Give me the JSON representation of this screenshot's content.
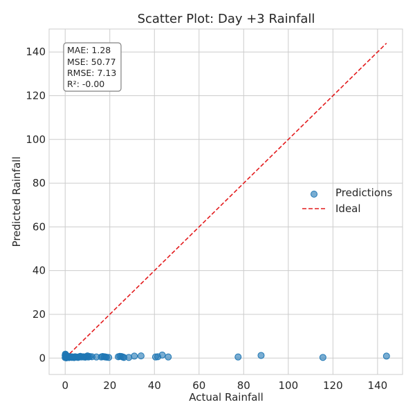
{
  "chart_data": {
    "type": "scatter",
    "title": "Scatter Plot: Day +3 Rainfall",
    "xlabel": "Actual Rainfall",
    "ylabel": "Predicted Rainfall",
    "xlim": [
      -7.2,
      151.2
    ],
    "ylim": [
      -7.5,
      150.5
    ],
    "xticks": [
      0,
      20,
      40,
      60,
      80,
      100,
      120,
      140
    ],
    "yticks": [
      0,
      20,
      40,
      60,
      80,
      100,
      120,
      140
    ],
    "grid": true,
    "legend_position": "center-right",
    "series": [
      {
        "name": "Predictions",
        "kind": "scatter",
        "color": "#1f77b4",
        "points": [
          [
            0,
            0.2
          ],
          [
            0,
            1.2
          ],
          [
            0.1,
            1.8
          ],
          [
            0.2,
            0.5
          ],
          [
            0.3,
            1.5
          ],
          [
            0.4,
            0.9
          ],
          [
            0.5,
            0.1
          ],
          [
            0.6,
            1.1
          ],
          [
            0.8,
            0.4
          ],
          [
            1.0,
            0.3
          ],
          [
            1.2,
            0.6
          ],
          [
            1.5,
            0.7
          ],
          [
            1.8,
            0.2
          ],
          [
            2.0,
            0.5
          ],
          [
            2.3,
            0.4
          ],
          [
            2.6,
            0.6
          ],
          [
            3.0,
            0.3
          ],
          [
            3.3,
            0.5
          ],
          [
            3.7,
            0.4
          ],
          [
            4.0,
            0.2
          ],
          [
            4.4,
            0.6
          ],
          [
            4.8,
            0.5
          ],
          [
            5.2,
            0.4
          ],
          [
            5.8,
            0.3
          ],
          [
            6.3,
            0.6
          ],
          [
            6.8,
            0.8
          ],
          [
            7.2,
            0.5
          ],
          [
            8.0,
            0.6
          ],
          [
            8.5,
            0.5
          ],
          [
            9.0,
            0.4
          ],
          [
            9.5,
            0.7
          ],
          [
            10.0,
            1.0
          ],
          [
            10.4,
            0.5
          ],
          [
            11.0,
            0.7
          ],
          [
            12.0,
            0.6
          ],
          [
            14.0,
            0.5
          ],
          [
            16.2,
            0.5
          ],
          [
            16.8,
            0.7
          ],
          [
            17.5,
            0.6
          ],
          [
            18.0,
            0.5
          ],
          [
            18.5,
            0.4
          ],
          [
            19.5,
            0.3
          ],
          [
            23.8,
            0.6
          ],
          [
            24.5,
            0.8
          ],
          [
            25.2,
            0.7
          ],
          [
            25.8,
            0.5
          ],
          [
            26.3,
            0.3
          ],
          [
            28.5,
            0.3
          ],
          [
            31.0,
            0.9
          ],
          [
            34.0,
            1.0
          ],
          [
            40.5,
            0.5
          ],
          [
            41.5,
            0.6
          ],
          [
            43.5,
            1.4
          ],
          [
            46.2,
            0.5
          ],
          [
            77.5,
            0.5
          ],
          [
            87.8,
            1.2
          ],
          [
            115.5,
            0.3
          ],
          [
            144.0,
            0.9
          ]
        ]
      },
      {
        "name": "Ideal",
        "kind": "line",
        "style": "dashed",
        "color": "#e31a1c",
        "x": [
          0,
          144
        ],
        "y": [
          0,
          144
        ]
      }
    ],
    "annotation": {
      "lines": [
        "MAE: 1.28",
        "MSE: 50.77",
        "RMSE: 7.13",
        "R²: -0.00"
      ]
    }
  }
}
